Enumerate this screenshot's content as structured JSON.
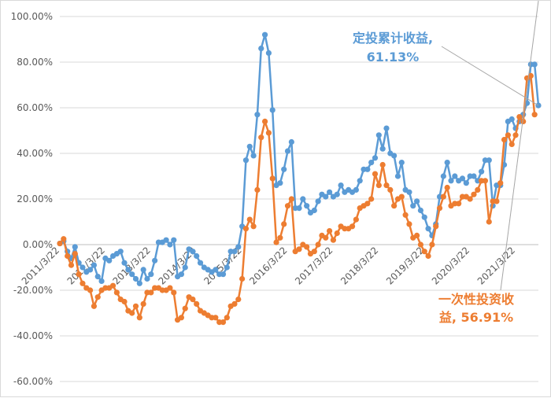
{
  "chart_data": {
    "type": "line",
    "title": "",
    "xlabel": "",
    "ylabel": "",
    "ylim": [
      -60,
      100
    ],
    "y_ticks": [
      "100.00%",
      "80.00%",
      "60.00%",
      "40.00%",
      "20.00%",
      "0.00%",
      "-20.00%",
      "-40.00%",
      "-60.00%"
    ],
    "y_tick_values": [
      100,
      80,
      60,
      40,
      20,
      0,
      -20,
      -40,
      -60
    ],
    "x_ticks": [
      "2011/3/22",
      "2012/3/22",
      "2013/3/22",
      "2014/3/22",
      "2015/3/22",
      "2016/3/22",
      "2017/3/22",
      "2018/3/22",
      "2019/3/22",
      "2020/3/22",
      "2021/3/22"
    ],
    "x_tick_index": [
      0,
      12,
      24,
      36,
      48,
      60,
      72,
      84,
      96,
      108,
      120
    ],
    "grid": true,
    "markers": true,
    "series": [
      {
        "name": "定投累计收益",
        "color": "#5b9bd5",
        "values": [
          0.5,
          1.5,
          -3,
          -6,
          -1,
          -8,
          -10,
          -12,
          -11,
          -9,
          -14,
          -16,
          -6,
          -7,
          -5,
          -4,
          -3,
          -8,
          -11,
          -13,
          -15,
          -17,
          -11,
          -15,
          -13,
          -7,
          1,
          1,
          2,
          0,
          2,
          -14,
          -13,
          -10,
          -2,
          -3,
          -5,
          -8,
          -10,
          -11,
          -12,
          -11,
          -13,
          -13,
          -10,
          -3,
          -3,
          -1,
          8,
          37,
          43,
          39,
          57,
          86,
          92,
          84,
          59,
          26,
          27,
          33,
          41,
          45,
          16,
          16,
          20,
          17,
          14,
          15,
          19,
          22,
          21,
          23,
          21,
          22,
          26,
          23,
          24,
          23,
          24,
          28,
          33,
          33,
          36,
          38,
          48,
          42,
          51,
          40,
          39,
          30,
          36,
          24,
          23,
          17,
          19,
          15,
          12,
          7,
          4,
          9,
          21,
          30,
          36,
          28,
          30,
          28,
          29,
          27,
          30,
          30,
          28,
          32,
          37,
          37,
          17,
          26,
          26,
          35,
          54,
          55,
          51,
          54,
          57,
          62,
          79,
          79,
          61
        ]
      },
      {
        "name": "一次性投资收益",
        "color": "#ed7d31",
        "values": [
          0.5,
          2.5,
          -5,
          -9,
          -4,
          -13,
          -17,
          -19,
          -20,
          -27,
          -23,
          -20,
          -19,
          -19,
          -18,
          -21,
          -24,
          -25,
          -29,
          -30,
          -27,
          -32,
          -26,
          -21,
          -21,
          -19,
          -19,
          -20,
          -20,
          -19,
          -21,
          -33,
          -32,
          -28,
          -23,
          -24,
          -26,
          -29,
          -30,
          -31,
          -32,
          -32,
          -34,
          -34,
          -32,
          -27,
          -26,
          -24,
          -15,
          7,
          11,
          8,
          24,
          47,
          54,
          49,
          29,
          1,
          3,
          9,
          17,
          20,
          -3,
          -2,
          0,
          -1,
          -4,
          -3,
          0,
          4,
          3,
          6,
          2,
          5,
          8,
          7,
          7,
          8,
          11,
          16,
          17,
          18,
          20,
          31,
          26,
          35,
          26,
          24,
          17,
          20,
          21,
          13,
          9,
          3,
          4,
          0,
          -3,
          -5,
          0,
          8,
          16,
          21,
          25,
          17,
          18,
          18,
          21,
          21,
          20,
          22,
          24,
          28,
          28,
          10,
          19,
          19,
          27,
          46,
          48,
          44,
          48,
          56,
          54,
          73,
          74,
          57
        ]
      }
    ],
    "annotations": [
      {
        "series": "定投累计收益",
        "lines": [
          "定投累计收益,",
          "61.13%"
        ],
        "color": "#5b9bd5"
      },
      {
        "series": "一次性投资收益",
        "lines": [
          "一次性投资收",
          "益, 56.91%"
        ],
        "color": "#ed7d31"
      }
    ]
  }
}
